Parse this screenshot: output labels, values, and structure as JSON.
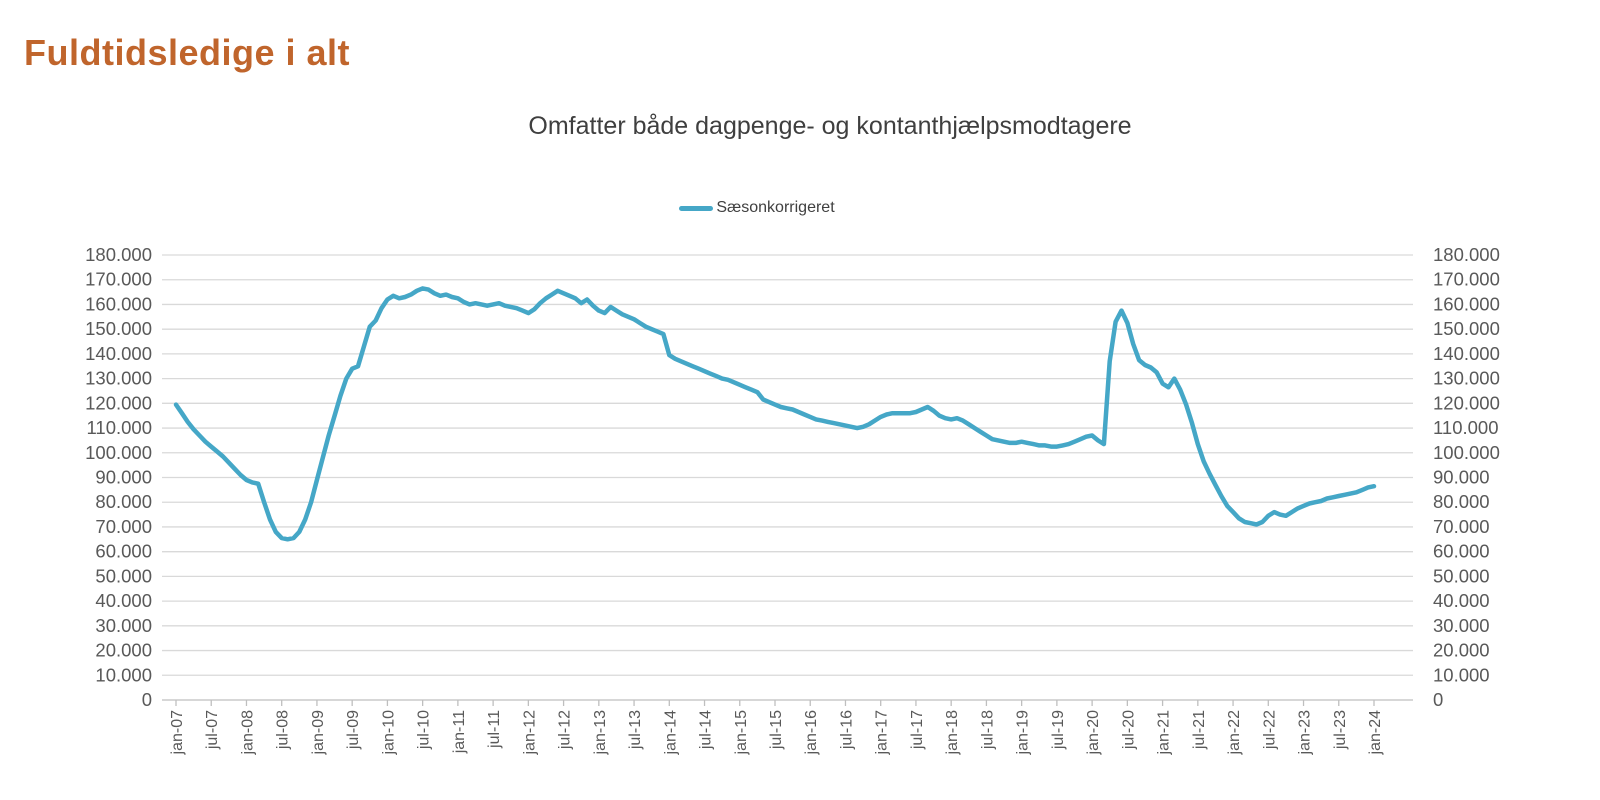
{
  "page": {
    "title": "Fuldtidsledige i alt"
  },
  "colors": {
    "title_text": "#C0652C",
    "subtitle_text": "#3F3F3F",
    "series_line": "#45A7C7",
    "gridline": "#D9D9D9",
    "axis_line": "#BFBFBF",
    "axis_text": "#595959",
    "legend_text": "#404040",
    "background": "#FFFFFF"
  },
  "chart_data": {
    "type": "line",
    "title": "Omfatter både dagpenge- og kontanthjælpsmodtagere",
    "legend_position": "top-center",
    "grid": "horizontal",
    "dual_y_axis": true,
    "ylim": [
      0,
      180000
    ],
    "y_tick_step": 10000,
    "y_tick_labels": [
      "0",
      "10.000",
      "20.000",
      "30.000",
      "40.000",
      "50.000",
      "60.000",
      "70.000",
      "80.000",
      "90.000",
      "100.000",
      "110.000",
      "120.000",
      "130.000",
      "140.000",
      "150.000",
      "160.000",
      "170.000",
      "180.000"
    ],
    "x_unit": "month",
    "x_start": "jan-07",
    "x_end": "jan-24",
    "x_tick_every_months": 6,
    "x_tick_labels": [
      "jan-07",
      "jul-07",
      "jan-08",
      "jul-08",
      "jan-09",
      "jul-09",
      "jan-10",
      "jul-10",
      "jan-11",
      "jul-11",
      "jan-12",
      "jul-12",
      "jan-13",
      "jul-13",
      "jan-14",
      "jul-14",
      "jan-15",
      "jul-15",
      "jan-16",
      "jul-16",
      "jan-17",
      "jul-17",
      "jan-18",
      "jul-18",
      "jan-19",
      "jul-19",
      "jan-20",
      "jul-20",
      "jan-21",
      "jul-21",
      "jan-22",
      "jul-22",
      "jan-23",
      "jul-23",
      "jan-24"
    ],
    "series": [
      {
        "name": "Sæsonkorrigeret",
        "color": "#45A7C7",
        "monthly_values": [
          119500,
          116000,
          112500,
          109500,
          107000,
          104500,
          102500,
          100500,
          98500,
          96000,
          93500,
          91000,
          89000,
          88000,
          87500,
          80000,
          73000,
          68000,
          65500,
          65000,
          65500,
          68000,
          73000,
          80000,
          89000,
          98000,
          107000,
          115000,
          123000,
          130000,
          134000,
          135000,
          143000,
          151000,
          153500,
          158500,
          162000,
          163500,
          162500,
          163000,
          164000,
          165500,
          166500,
          166000,
          164500,
          163500,
          164000,
          163000,
          162500,
          161000,
          160000,
          160500,
          160000,
          159500,
          160000,
          160500,
          159500,
          159000,
          158500,
          157500,
          156500,
          158000,
          160500,
          162500,
          164000,
          165500,
          164500,
          163500,
          162500,
          160500,
          162000,
          159500,
          157500,
          156500,
          159000,
          157500,
          156000,
          155000,
          154000,
          152500,
          151000,
          150000,
          149000,
          148000,
          139500,
          138000,
          137000,
          136000,
          135000,
          134000,
          133000,
          132000,
          131000,
          130000,
          129500,
          128500,
          127500,
          126500,
          125500,
          124500,
          121500,
          120500,
          119500,
          118500,
          118000,
          117500,
          116500,
          115500,
          114500,
          113500,
          113000,
          112500,
          112000,
          111500,
          111000,
          110500,
          110000,
          110500,
          111500,
          113000,
          114500,
          115500,
          116000,
          116000,
          116000,
          116000,
          116500,
          117500,
          118500,
          117000,
          115000,
          114000,
          113500,
          114000,
          113000,
          111500,
          110000,
          108500,
          107000,
          105500,
          105000,
          104500,
          104000,
          104000,
          104500,
          104000,
          103500,
          103000,
          103000,
          102500,
          102500,
          103000,
          103500,
          104500,
          105500,
          106500,
          107000,
          105000,
          103500,
          137000,
          153000,
          157500,
          152500,
          144000,
          137500,
          135500,
          134500,
          132500,
          128000,
          126500,
          130000,
          125500,
          119500,
          112000,
          103500,
          96500,
          91500,
          87000,
          82500,
          78500,
          76000,
          73500,
          72000,
          71500,
          71000,
          72000,
          74500,
          76000,
          75000,
          74500,
          76000,
          77500,
          78500,
          79500,
          80000,
          80500,
          81500,
          82000,
          82500,
          83000,
          83500,
          84000,
          85000,
          86000,
          86500
        ]
      }
    ]
  }
}
